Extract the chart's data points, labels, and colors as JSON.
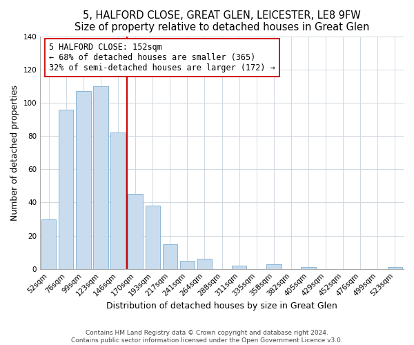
{
  "title": "5, HALFORD CLOSE, GREAT GLEN, LEICESTER, LE8 9FW",
  "subtitle": "Size of property relative to detached houses in Great Glen",
  "xlabel": "Distribution of detached houses by size in Great Glen",
  "ylabel": "Number of detached properties",
  "bar_labels": [
    "52sqm",
    "76sqm",
    "99sqm",
    "123sqm",
    "146sqm",
    "170sqm",
    "193sqm",
    "217sqm",
    "241sqm",
    "264sqm",
    "288sqm",
    "311sqm",
    "335sqm",
    "358sqm",
    "382sqm",
    "405sqm",
    "429sqm",
    "452sqm",
    "476sqm",
    "499sqm",
    "523sqm"
  ],
  "bar_values": [
    30,
    96,
    107,
    110,
    82,
    45,
    38,
    15,
    5,
    6,
    0,
    2,
    0,
    3,
    0,
    1,
    0,
    0,
    0,
    0,
    1
  ],
  "bar_color": "#c8dcee",
  "bar_edge_color": "#7aaed0",
  "vline_color": "#cc0000",
  "annotation_text": "5 HALFORD CLOSE: 152sqm\n← 68% of detached houses are smaller (365)\n32% of semi-detached houses are larger (172) →",
  "annotation_box_color": "white",
  "annotation_box_edge": "#cc0000",
  "ylim": [
    0,
    140
  ],
  "yticks": [
    0,
    20,
    40,
    60,
    80,
    100,
    120,
    140
  ],
  "footer1": "Contains HM Land Registry data © Crown copyright and database right 2024.",
  "footer2": "Contains public sector information licensed under the Open Government Licence v3.0.",
  "title_fontsize": 10.5,
  "subtitle_fontsize": 9.5,
  "axis_label_fontsize": 9,
  "tick_fontsize": 7.5,
  "annotation_fontsize": 8.5,
  "footer_fontsize": 6.5
}
